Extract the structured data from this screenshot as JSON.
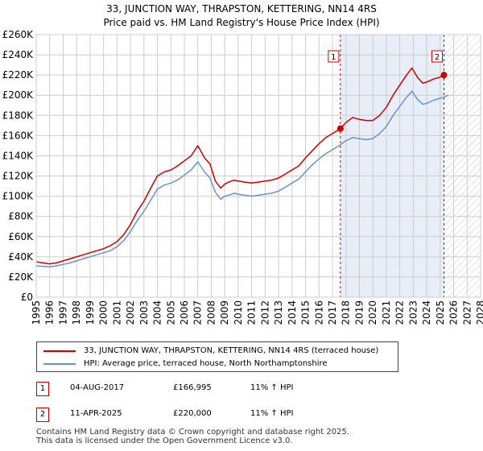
{
  "title_line1": "33, JUNCTION WAY, THRAPSTON, KETTERING, NN14 4RS",
  "title_line2": "Price paid vs. HM Land Registry's House Price Index (HPI)",
  "legend": {
    "property": "33, JUNCTION WAY, THRAPSTON, KETTERING, NN14 4RS (terraced house)",
    "hpi": "HPI: Average price, terraced house, North Northamptonshire"
  },
  "transactions": [
    {
      "num": "1",
      "date": "04-AUG-2017",
      "price": "£166,995",
      "hpi": "11% ↑ HPI"
    },
    {
      "num": "2",
      "date": "11-APR-2025",
      "price": "£220,000",
      "hpi": "11% ↑ HPI"
    }
  ],
  "footer": {
    "line1": "Contains HM Land Registry data © Crown copyright and database right 2025.",
    "line2": "This data is licensed under the Open Government Licence v3.0."
  },
  "colors": {
    "property": "#cc0000",
    "hpi": "#6b93c4",
    "shade": "#e8eef8",
    "grid": "#cccccc"
  },
  "chart_data": {
    "type": "line",
    "x_range": [
      1995,
      2028
    ],
    "ylim": [
      0,
      260000
    ],
    "y_ticks": [
      0,
      20000,
      40000,
      60000,
      80000,
      100000,
      120000,
      140000,
      160000,
      180000,
      200000,
      220000,
      240000,
      260000
    ],
    "y_tick_labels": [
      "£0",
      "£20K",
      "£40K",
      "£60K",
      "£80K",
      "£100K",
      "£120K",
      "£140K",
      "£160K",
      "£180K",
      "£200K",
      "£220K",
      "£240K",
      "£260K"
    ],
    "x_ticks": [
      1995,
      1996,
      1997,
      1998,
      1999,
      2000,
      2001,
      2002,
      2003,
      2004,
      2005,
      2006,
      2007,
      2008,
      2009,
      2010,
      2011,
      2012,
      2013,
      2014,
      2015,
      2016,
      2017,
      2018,
      2019,
      2020,
      2021,
      2022,
      2023,
      2024,
      2025,
      2026,
      2027,
      2028
    ],
    "shaded_range": [
      2017.59,
      2025.28
    ],
    "hatched_from": 2025.28,
    "markers": [
      {
        "label": "1",
        "x": 2017.59,
        "y": 166995
      },
      {
        "label": "2",
        "x": 2025.28,
        "y": 220000
      }
    ],
    "series": [
      {
        "name": "33, JUNCTION WAY, THRAPSTON, KETTERING, NN14 4RS (terraced house)",
        "x": [
          1995.0,
          1995.5,
          1996.0,
          1996.5,
          1997.0,
          1997.5,
          1998.0,
          1998.5,
          1999.0,
          1999.5,
          2000.0,
          2000.5,
          2001.0,
          2001.5,
          2002.0,
          2002.5,
          2003.0,
          2003.5,
          2004.0,
          2004.5,
          2005.0,
          2005.5,
          2006.0,
          2006.5,
          2007.0,
          2007.5,
          2007.9,
          2008.3,
          2008.7,
          2009.0,
          2009.3,
          2009.7,
          2010.0,
          2010.5,
          2011.0,
          2011.5,
          2012.0,
          2012.5,
          2013.0,
          2013.5,
          2014.0,
          2014.5,
          2015.0,
          2015.5,
          2016.0,
          2016.5,
          2017.0,
          2017.59,
          2018.0,
          2018.5,
          2019.0,
          2019.5,
          2020.0,
          2020.5,
          2021.0,
          2021.5,
          2022.0,
          2022.5,
          2022.9,
          2023.3,
          2023.7,
          2024.0,
          2024.5,
          2025.0,
          2025.28
        ],
        "values": [
          35000,
          34000,
          33000,
          34000,
          36000,
          38000,
          40000,
          42000,
          44000,
          46000,
          48000,
          51000,
          55000,
          62000,
          72000,
          85000,
          95000,
          108000,
          120000,
          124000,
          126000,
          130000,
          135000,
          140000,
          150000,
          138000,
          132000,
          115000,
          108000,
          112000,
          114000,
          116000,
          115000,
          114000,
          113000,
          114000,
          115000,
          116000,
          118000,
          122000,
          126000,
          130000,
          138000,
          145000,
          152000,
          158000,
          162000,
          166995,
          173000,
          178000,
          176000,
          175000,
          175000,
          180000,
          188000,
          200000,
          210000,
          220000,
          227000,
          218000,
          212000,
          213000,
          216000,
          218000,
          220000
        ]
      },
      {
        "name": "HPI: Average price, terraced house, North Northamptonshire",
        "x": [
          1995.0,
          1995.5,
          1996.0,
          1996.5,
          1997.0,
          1997.5,
          1998.0,
          1998.5,
          1999.0,
          1999.5,
          2000.0,
          2000.5,
          2001.0,
          2001.5,
          2002.0,
          2002.5,
          2003.0,
          2003.5,
          2004.0,
          2004.5,
          2005.0,
          2005.5,
          2006.0,
          2006.5,
          2007.0,
          2007.5,
          2007.9,
          2008.3,
          2008.7,
          2009.0,
          2009.3,
          2009.7,
          2010.0,
          2010.5,
          2011.0,
          2011.5,
          2012.0,
          2012.5,
          2013.0,
          2013.5,
          2014.0,
          2014.5,
          2015.0,
          2015.5,
          2016.0,
          2016.5,
          2017.0,
          2017.59,
          2018.0,
          2018.5,
          2019.0,
          2019.5,
          2020.0,
          2020.5,
          2021.0,
          2021.5,
          2022.0,
          2022.5,
          2022.9,
          2023.3,
          2023.7,
          2024.0,
          2024.5,
          2025.0,
          2025.28,
          2025.6
        ],
        "values": [
          31000,
          30500,
          30000,
          31000,
          32500,
          34000,
          36000,
          38000,
          40000,
          42000,
          44000,
          46000,
          50000,
          56000,
          65000,
          76000,
          85000,
          96000,
          107000,
          111000,
          113000,
          116000,
          121000,
          126000,
          134000,
          124000,
          118000,
          104000,
          97000,
          100000,
          101000,
          103000,
          102000,
          101000,
          100000,
          101000,
          102000,
          103000,
          105000,
          109000,
          113000,
          117000,
          124000,
          131000,
          137000,
          142000,
          146000,
          151000,
          155000,
          158000,
          157000,
          156000,
          157000,
          162000,
          169000,
          180000,
          189000,
          198000,
          204000,
          196000,
          191000,
          192000,
          195000,
          197000,
          198000,
          200000
        ]
      }
    ]
  }
}
